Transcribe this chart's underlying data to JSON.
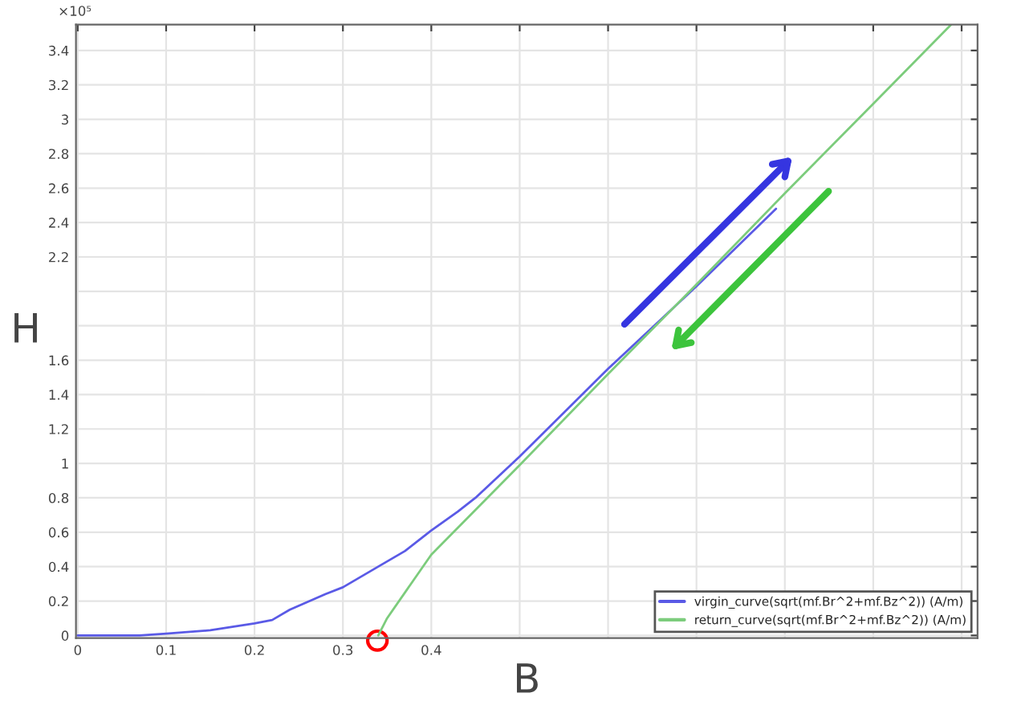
{
  "chart_data": {
    "type": "line",
    "xlabel": "B",
    "ylabel": "H",
    "annotations": [
      "×10⁵"
    ],
    "series": [
      {
        "name": "virgin_curve(sqrt(mf.Br^2+mf.Bz^2)) (A/m)",
        "color": "#5a5ae6",
        "x": [
          0,
          0.07,
          0.1,
          0.15,
          0.2,
          0.22,
          0.24,
          0.28,
          0.3,
          0.34,
          0.37,
          0.4,
          0.43,
          0.45,
          0.5,
          0.6,
          0.7,
          0.79
        ],
        "values": [
          0,
          0,
          0.01,
          0.03,
          0.07,
          0.09,
          0.15,
          0.24,
          0.28,
          0.4,
          0.49,
          0.61,
          0.72,
          0.8,
          1.04,
          1.55,
          2.03,
          2.48
        ]
      },
      {
        "name": "return_curve(sqrt(mf.Br^2+mf.Bz^2)) (A/m)",
        "color": "#7ccc7c",
        "x": [
          0.34,
          0.35,
          0.4,
          0.45,
          0.5,
          0.6,
          0.7,
          0.8,
          0.9,
          0.988
        ],
        "values": [
          0,
          0.1,
          0.47,
          0.73,
          0.99,
          1.52,
          2.04,
          2.57,
          3.09,
          3.55
        ]
      }
    ],
    "xlim": [
      -0.002,
      1.018
    ],
    "ylim": [
      -0.015,
      3.55
    ],
    "xticks": [
      0,
      0.1,
      0.2,
      0.3,
      0.4,
      {
        "value": 0.5,
        "label": null
      },
      {
        "value": 0.6,
        "label": null
      },
      {
        "value": 0.7,
        "label": null
      },
      {
        "value": 0.8,
        "label": null
      },
      {
        "value": 0.9,
        "label": null
      },
      {
        "value": 1.0,
        "label": null
      }
    ],
    "yticks": [
      0,
      0.2,
      0.4,
      0.6,
      0.8,
      1,
      1.2,
      1.4,
      1.6,
      {
        "value": 1.8,
        "label": null
      },
      {
        "value": 2.0,
        "label": null
      },
      2.2,
      2.4,
      2.6,
      2.8,
      3,
      3.2,
      3.4
    ],
    "grid": true,
    "legend": "bottom right",
    "marker": "none",
    "line_style": "solid"
  }
}
